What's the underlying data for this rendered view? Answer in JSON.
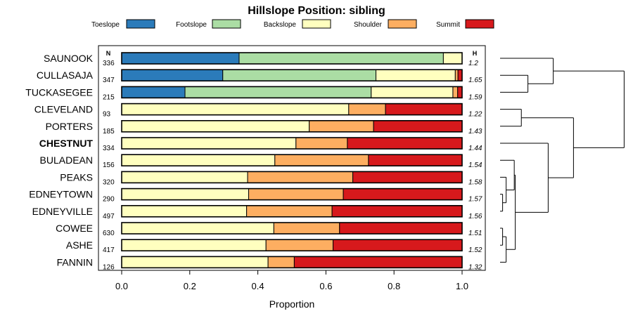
{
  "chart_data": {
    "type": "bar",
    "orientation": "horizontal-stacked",
    "title": "Hillslope Position: sibling",
    "xlabel": "Proportion",
    "ylabel": "",
    "xlim": [
      0,
      1
    ],
    "x_ticks": [
      "0.0",
      "0.2",
      "0.4",
      "0.6",
      "0.8",
      "1.0"
    ],
    "x_tick_values": [
      0,
      0.2,
      0.4,
      0.6,
      0.8,
      1.0
    ],
    "n_header": "N",
    "h_header": "H",
    "highlight": "CHESTNUT",
    "legend": [
      {
        "name": "Toeslope",
        "color": "#2b7bba"
      },
      {
        "name": "Footslope",
        "color": "#abdda4"
      },
      {
        "name": "Backslope",
        "color": "#ffffbf"
      },
      {
        "name": "Shoulder",
        "color": "#fdae61"
      },
      {
        "name": "Summit",
        "color": "#d7191c"
      }
    ],
    "categories": [
      "SAUNOOK",
      "CULLASAJA",
      "TUCKASEGEE",
      "CLEVELAND",
      "PORTERS",
      "CHESTNUT",
      "BULADEAN",
      "PEAKS",
      "EDNEYTOWN",
      "EDNEYVILLE",
      "COWEE",
      "ASHE",
      "FANNIN"
    ],
    "n": [
      "336",
      "347",
      "215",
      "93",
      "185",
      "334",
      "156",
      "320",
      "290",
      "497",
      "630",
      "417",
      "126"
    ],
    "h": [
      "1.2",
      "1.65",
      "1.59",
      "1.22",
      "1.43",
      "1.44",
      "1.54",
      "1.58",
      "1.57",
      "1.56",
      "1.51",
      "1.52",
      "1.32"
    ],
    "series": [
      {
        "name": "Toeslope",
        "values": [
          0.345,
          0.297,
          0.186,
          0,
          0,
          0,
          0,
          0,
          0,
          0,
          0,
          0,
          0
        ]
      },
      {
        "name": "Footslope",
        "values": [
          0.6,
          0.45,
          0.547,
          0,
          0,
          0,
          0,
          0,
          0,
          0,
          0,
          0,
          0
        ]
      },
      {
        "name": "Backslope",
        "values": [
          0.055,
          0.233,
          0.24,
          0.667,
          0.551,
          0.512,
          0.45,
          0.37,
          0.373,
          0.367,
          0.447,
          0.424,
          0.43
        ]
      },
      {
        "name": "Shoulder",
        "values": [
          0,
          0.008,
          0.014,
          0.108,
          0.189,
          0.151,
          0.275,
          0.309,
          0.278,
          0.251,
          0.193,
          0.197,
          0.077
        ]
      },
      {
        "name": "Summit",
        "values": [
          0,
          0.012,
          0.013,
          0.225,
          0.26,
          0.337,
          0.275,
          0.321,
          0.349,
          0.382,
          0.36,
          0.379,
          0.493
        ]
      }
    ],
    "dendrogram": {
      "heights": [
        2.5,
        1.05,
        0.55,
        0.85,
        0.25,
        0.42,
        0.95,
        0.28,
        0.12,
        0.05,
        0.75,
        0.12,
        0.05
      ],
      "merges": [
        {
          "left": "leaf:1",
          "right": "leaf:2",
          "height": 0.55
        },
        {
          "left": "leaf:0",
          "right": "node:0",
          "height": 1.05
        },
        {
          "left": "leaf:3",
          "right": "leaf:4",
          "height": 0.42
        },
        {
          "left": "leaf:8",
          "right": "leaf:9",
          "height": 0.05
        },
        {
          "left": "leaf:7",
          "right": "node:3",
          "height": 0.12
        },
        {
          "left": "leaf:6",
          "right": "node:4",
          "height": 0.28
        },
        {
          "left": "leaf:10",
          "right": "leaf:11",
          "height": 0.05
        },
        {
          "left": "leaf:12",
          "right": "node:6",
          "height": 0.12
        },
        {
          "left": "node:5",
          "right": "node:7",
          "height": 0.3
        },
        {
          "left": "leaf:5",
          "right": "node:8",
          "height": 0.95
        },
        {
          "left": "node:2",
          "right": "node:9",
          "height": 1.45
        },
        {
          "left": "node:1",
          "right": "node:10",
          "height": 2.45
        }
      ]
    }
  }
}
